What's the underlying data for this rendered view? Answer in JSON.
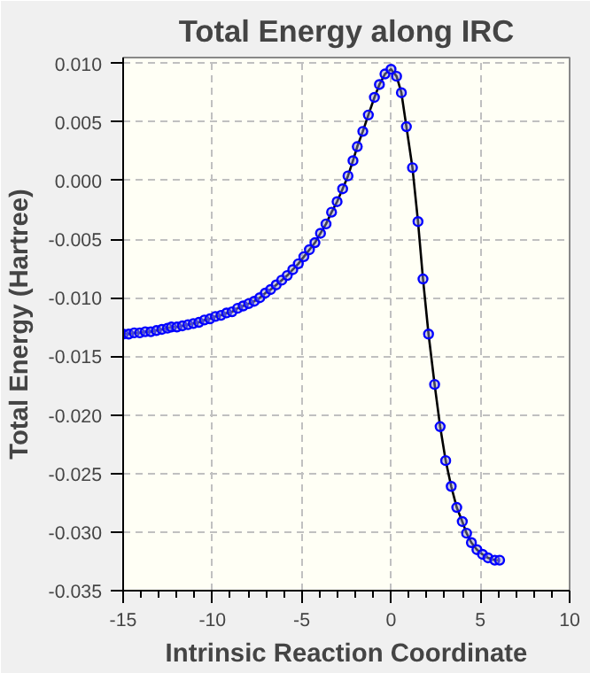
{
  "chart_data": {
    "type": "line",
    "title": "Total Energy along IRC",
    "xlabel": "Intrinsic Reaction Coordinate",
    "ylabel": "Total Energy (Hartree)",
    "xlim": [
      -15,
      10
    ],
    "ylim": [
      -0.035,
      0.0105
    ],
    "xticks": [
      -15,
      {
        "value": -14,
        "label": null
      },
      {
        "value": -13,
        "label": null
      },
      {
        "value": -12,
        "label": null
      },
      {
        "value": -11,
        "label": null
      },
      -10,
      {
        "value": -9,
        "label": null
      },
      {
        "value": -8,
        "label": null
      },
      {
        "value": -7,
        "label": null
      },
      {
        "value": -6,
        "label": null
      },
      -5,
      {
        "value": -4,
        "label": null
      },
      {
        "value": -3,
        "label": null
      },
      {
        "value": -2,
        "label": null
      },
      {
        "value": -1,
        "label": null
      },
      0,
      {
        "value": 1,
        "label": null
      },
      {
        "value": 2,
        "label": null
      },
      {
        "value": 3,
        "label": null
      },
      {
        "value": 4,
        "label": null
      },
      5,
      {
        "value": 6,
        "label": null
      },
      {
        "value": 7,
        "label": null
      },
      {
        "value": 8,
        "label": null
      },
      {
        "value": 9,
        "label": null
      },
      10
    ],
    "yticks": [
      {
        "value": 0.01,
        "label": "0.010"
      },
      {
        "value": 0.005,
        "label": "0.005"
      },
      {
        "value": 0,
        "label": "0.000"
      },
      {
        "value": -0.005,
        "label": "-0.005"
      },
      {
        "value": -0.01,
        "label": "-0.010"
      },
      {
        "value": -0.015,
        "label": "-0.015"
      },
      {
        "value": -0.02,
        "label": "-0.020"
      },
      {
        "value": -0.025,
        "label": "-0.025"
      },
      {
        "value": -0.03,
        "label": "-0.030"
      },
      {
        "value": -0.035,
        "label": "-0.035"
      }
    ],
    "grid": true,
    "marker": "circle",
    "line_style": "solid",
    "series": [
      {
        "color": "#0000ff",
        "x": [
          -15.0,
          -14.69,
          -14.38,
          -14.07,
          -13.76,
          -13.45,
          -13.14,
          -12.83,
          -12.52,
          -12.3,
          -11.99,
          -11.68,
          -11.37,
          -11.07,
          -10.76,
          -10.45,
          -10.14,
          -9.83,
          -9.52,
          -9.21,
          -8.9,
          -8.59,
          -8.28,
          -7.97,
          -7.66,
          -7.35,
          -7.04,
          -6.74,
          -6.43,
          -6.12,
          -5.81,
          -5.5,
          -5.19,
          -4.88,
          -4.57,
          -4.26,
          -3.95,
          -3.64,
          -3.33,
          -3.02,
          -2.71,
          -2.41,
          -2.13,
          -1.89,
          -1.58,
          -1.27,
          -0.93,
          -0.65,
          -0.34,
          0.0,
          0.31,
          0.58,
          0.86,
          1.2,
          1.51,
          1.79,
          2.1,
          2.44,
          2.75,
          3.06,
          3.37,
          3.68,
          3.99,
          4.23,
          4.5,
          4.81,
          5.12,
          5.43,
          5.81,
          6.08
        ],
        "values": [
          -0.0131,
          -0.0131,
          -0.013,
          -0.013,
          -0.0129,
          -0.0129,
          -0.0128,
          -0.0127,
          -0.0126,
          -0.0125,
          -0.0125,
          -0.0124,
          -0.0123,
          -0.0122,
          -0.0121,
          -0.0119,
          -0.0118,
          -0.0116,
          -0.0115,
          -0.0113,
          -0.0112,
          -0.0109,
          -0.0107,
          -0.0105,
          -0.0103,
          -0.01,
          -0.0096,
          -0.0093,
          -0.0089,
          -0.0085,
          -0.0081,
          -0.0076,
          -0.0071,
          -0.0065,
          -0.0059,
          -0.0053,
          -0.0045,
          -0.0037,
          -0.0027,
          -0.0018,
          -0.0007,
          0.0004,
          0.0017,
          0.0029,
          0.0042,
          0.0056,
          0.0071,
          0.0082,
          0.0091,
          0.0095,
          0.0089,
          0.0075,
          0.0046,
          0.0011,
          -0.0035,
          -0.0084,
          -0.0131,
          -0.0174,
          -0.021,
          -0.0239,
          -0.0261,
          -0.0279,
          -0.0291,
          -0.0301,
          -0.0309,
          -0.0315,
          -0.0319,
          -0.0322,
          -0.0324,
          -0.0324
        ]
      }
    ]
  }
}
